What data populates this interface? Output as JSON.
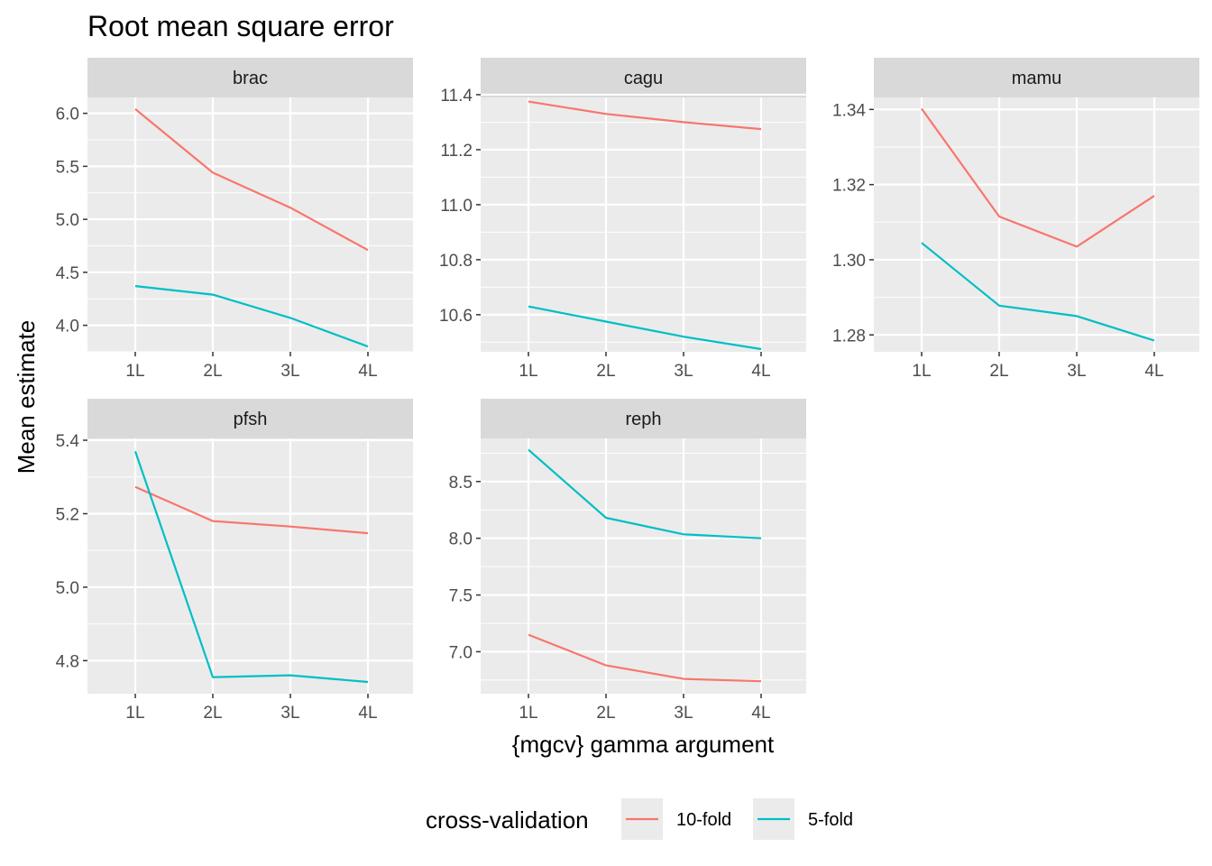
{
  "chart_data": {
    "type": "line",
    "title": "Root mean square error",
    "xlabel": "{mgcv} gamma argument",
    "ylabel": "Mean estimate",
    "categories": [
      "1L",
      "2L",
      "3L",
      "4L"
    ],
    "legend": {
      "title": "cross-validation",
      "position": "bottom",
      "entries": [
        {
          "name": "10-fold",
          "color": "#F8766D"
        },
        {
          "name": "5-fold",
          "color": "#00BFC4"
        }
      ]
    },
    "panel_background": "#EBEBEB",
    "strip_background": "#D9D9D9",
    "grid": true,
    "facets": [
      {
        "name": "brac",
        "ylim": [
          3.75,
          6.15
        ],
        "yticks": [
          "4.0",
          "4.5",
          "5.0",
          "5.5",
          "6.0"
        ],
        "series": [
          {
            "name": "10-fold",
            "values": [
              6.04,
              5.44,
              5.11,
              4.71
            ]
          },
          {
            "name": "5-fold",
            "values": [
              4.37,
              4.29,
              4.07,
              3.8
            ]
          }
        ]
      },
      {
        "name": "cagu",
        "ylim": [
          10.465,
          11.39
        ],
        "yticks": [
          "10.6",
          "10.8",
          "11.0",
          "11.2",
          "11.4"
        ],
        "series": [
          {
            "name": "10-fold",
            "values": [
              11.375,
              11.33,
              11.3,
              11.275
            ]
          },
          {
            "name": "5-fold",
            "values": [
              10.63,
              10.575,
              10.52,
              10.475
            ]
          }
        ]
      },
      {
        "name": "mamu",
        "ylim": [
          1.2755,
          1.3432
        ],
        "yticks": [
          "1.28",
          "1.30",
          "1.32",
          "1.34"
        ],
        "series": [
          {
            "name": "10-fold",
            "values": [
              1.3402,
              1.3115,
              1.3035,
              1.317
            ]
          },
          {
            "name": "5-fold",
            "values": [
              1.3045,
              1.2878,
              1.285,
              1.2785
            ]
          }
        ]
      },
      {
        "name": "pfsh",
        "ylim": [
          4.71,
          5.405
        ],
        "yticks": [
          "4.8",
          "5.0",
          "5.2",
          "5.4"
        ],
        "series": [
          {
            "name": "10-fold",
            "values": [
              5.273,
              5.18,
              5.165,
              5.147
            ]
          },
          {
            "name": "5-fold",
            "values": [
              5.37,
              4.755,
              4.76,
              4.742
            ]
          }
        ]
      },
      {
        "name": "reph",
        "ylim": [
          6.63,
          8.88
        ],
        "yticks": [
          "7.0",
          "7.5",
          "8.0",
          "8.5"
        ],
        "series": [
          {
            "name": "10-fold",
            "values": [
              7.15,
              6.88,
              6.76,
              6.74
            ]
          },
          {
            "name": "5-fold",
            "values": [
              8.78,
              8.18,
              8.035,
              8.0
            ]
          }
        ]
      }
    ]
  }
}
